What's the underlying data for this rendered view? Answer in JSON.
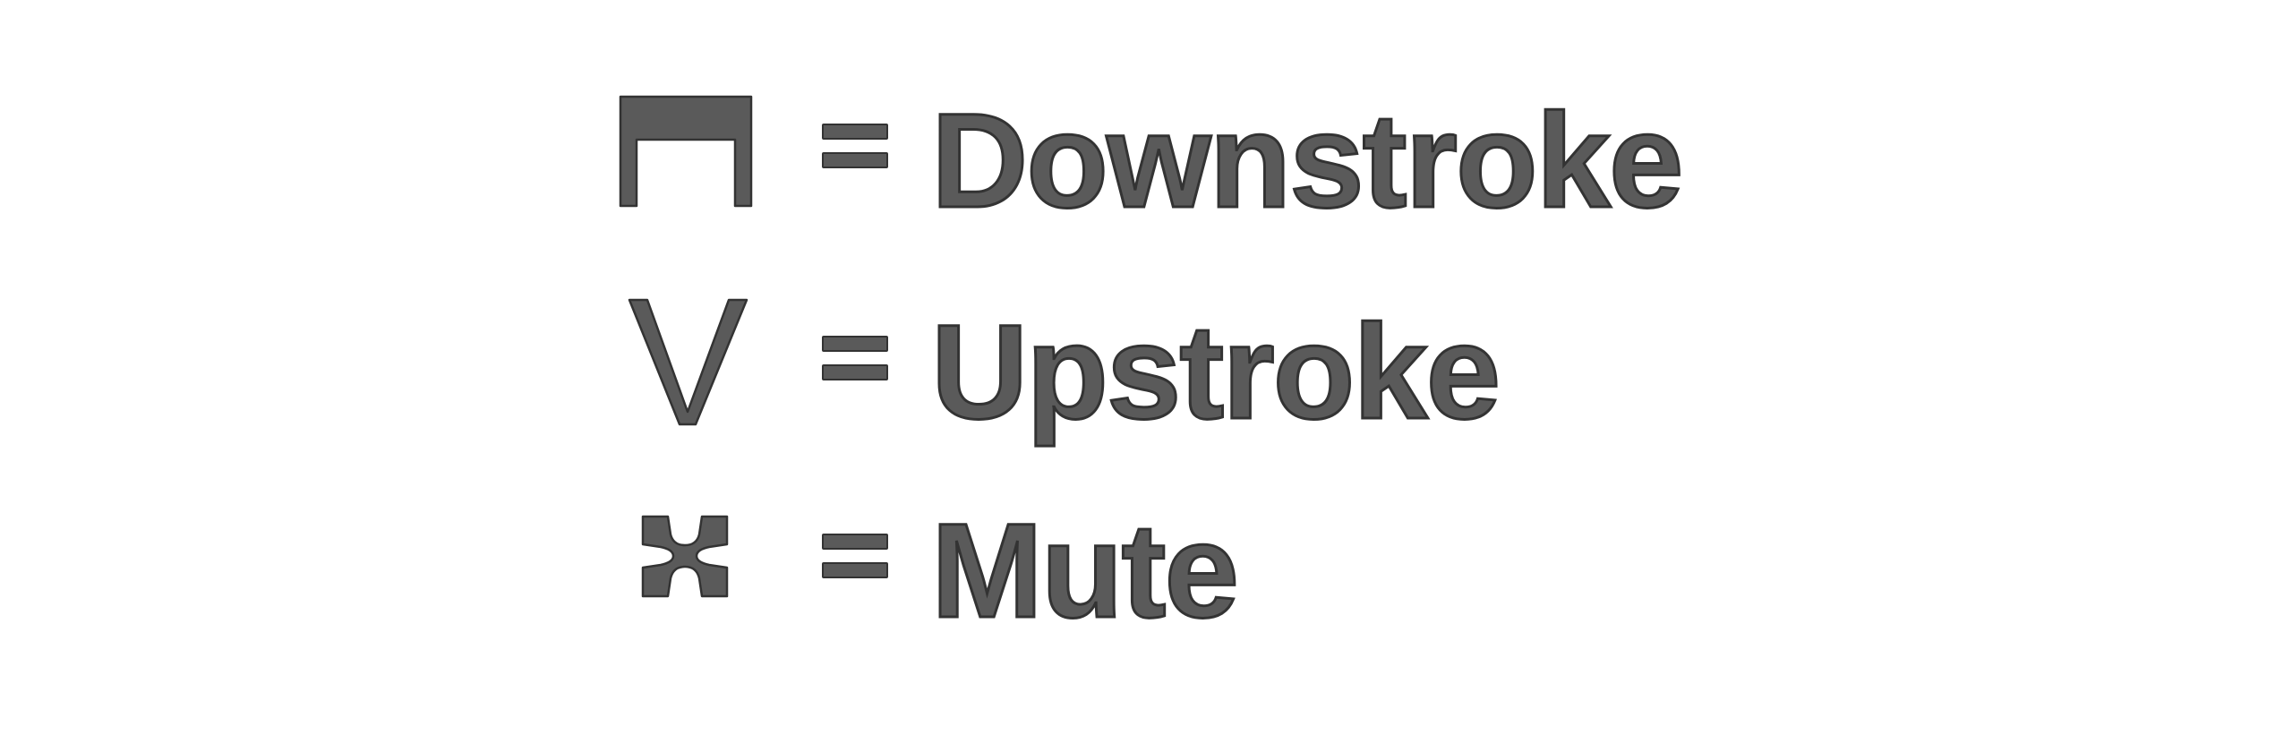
{
  "legend": {
    "items": [
      {
        "symbol": "downstroke-bow-icon",
        "equals": "=",
        "label": "Downstroke"
      },
      {
        "symbol": "upstroke-bow-icon",
        "equals": "=",
        "label": "Upstroke"
      },
      {
        "symbol": "mute-icon",
        "equals": "=",
        "label": "Mute"
      }
    ]
  },
  "colors": {
    "fill": "#5a5a5a",
    "outline": "#333333",
    "background": "#ffffff"
  }
}
